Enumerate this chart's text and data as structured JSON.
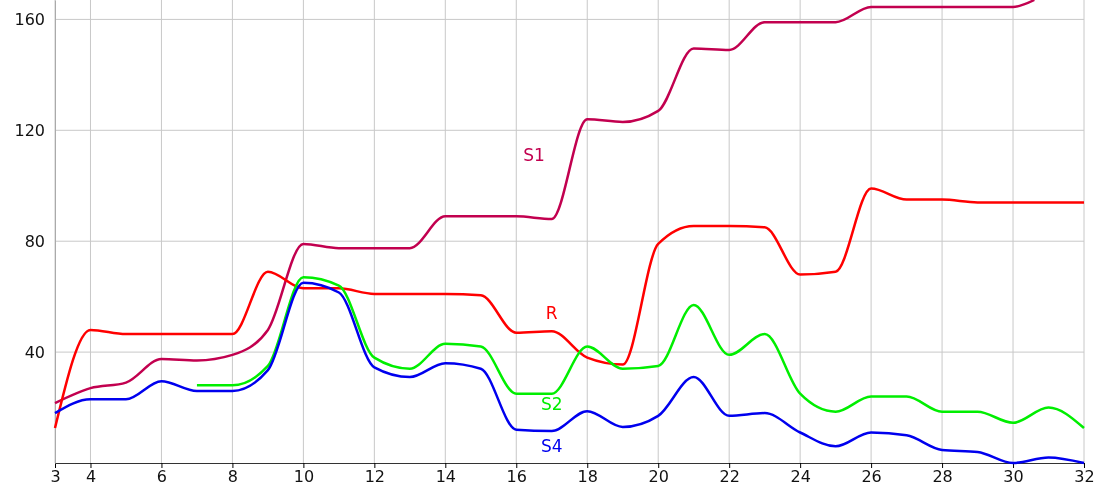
{
  "chart_data": {
    "type": "line",
    "x": [
      3,
      4,
      5,
      6,
      7,
      8,
      9,
      10,
      11,
      12,
      13,
      14,
      15,
      16,
      17,
      18,
      19,
      20,
      21,
      22,
      23,
      24,
      25,
      26,
      27,
      28,
      29,
      30,
      31,
      32
    ],
    "xlim": [
      3,
      32
    ],
    "xticks": [
      3,
      4,
      6,
      8,
      10,
      12,
      14,
      16,
      18,
      20,
      22,
      24,
      26,
      28,
      30,
      32
    ],
    "ylim": [
      0,
      167
    ],
    "yticks": [
      40,
      80,
      120,
      160
    ],
    "grid": true,
    "legend": false,
    "series": [
      {
        "name": "S1",
        "color": "#c2004f",
        "x": [
          3,
          4,
          5,
          6,
          7,
          8,
          9,
          10,
          11,
          12,
          13,
          14,
          15,
          16,
          17,
          18,
          19,
          20,
          21,
          22,
          23,
          24,
          25,
          26,
          27,
          28,
          29,
          30,
          30.6
        ],
        "values": [
          21.6,
          27,
          29,
          37.5,
          37,
          39,
          48,
          79,
          77.5,
          77.5,
          77.5,
          89,
          89,
          89,
          88,
          124,
          123,
          127,
          149.5,
          149,
          159,
          159,
          159,
          164.5,
          164.5,
          164.5,
          164.5,
          164.5,
          167
        ]
      },
      {
        "name": "R",
        "color": "#ff0000",
        "values": [
          12.6,
          48,
          46.5,
          46.5,
          46.5,
          46.5,
          69,
          63,
          63,
          61,
          61,
          61,
          60.5,
          47,
          47.5,
          38,
          35.5,
          79,
          85.5,
          85.5,
          85,
          68,
          69,
          99,
          95,
          95,
          94,
          94,
          94,
          94
        ]
      },
      {
        "name": "S2",
        "color": "#00ee00",
        "values": [
          null,
          null,
          null,
          null,
          28,
          28,
          35,
          67,
          64,
          38,
          34,
          43,
          42,
          25,
          25,
          42,
          34,
          35,
          57,
          39,
          46.5,
          25,
          18.5,
          24,
          24,
          18.5,
          18.5,
          14.5,
          20,
          12.6
        ]
      },
      {
        "name": "S4",
        "color": "#0000ee",
        "values": [
          18,
          23,
          23,
          29.5,
          26,
          26,
          33.5,
          65,
          61.5,
          34.5,
          31,
          36,
          34,
          12,
          11.5,
          18.7,
          13,
          17,
          31,
          17,
          18,
          11,
          6,
          11,
          10,
          4.7,
          4,
          0,
          2,
          0
        ]
      }
    ]
  }
}
